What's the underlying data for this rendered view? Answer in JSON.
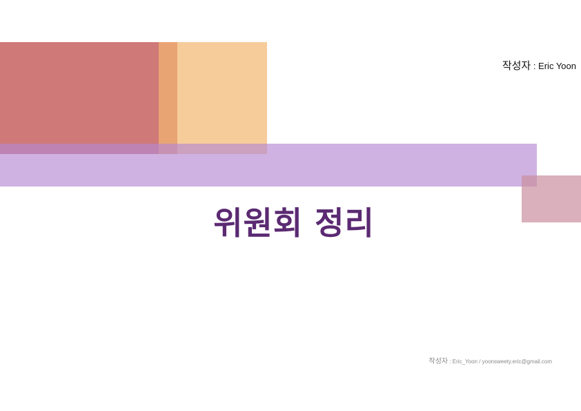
{
  "header": {
    "author_label": "작성자",
    "author_name": " : Eric Yoon"
  },
  "title": "위원회 정리",
  "footer": {
    "author_label": "작성자",
    "author_info": " : Eric_Yoon / yoonsweety.eric@gmail.com"
  },
  "colors": {
    "block_red": "#c45c5a",
    "block_peach": "#f3b671",
    "band_lavender": "#b588d3",
    "square_mauve": "#c98e9e",
    "title_purple": "#5b2a72"
  }
}
